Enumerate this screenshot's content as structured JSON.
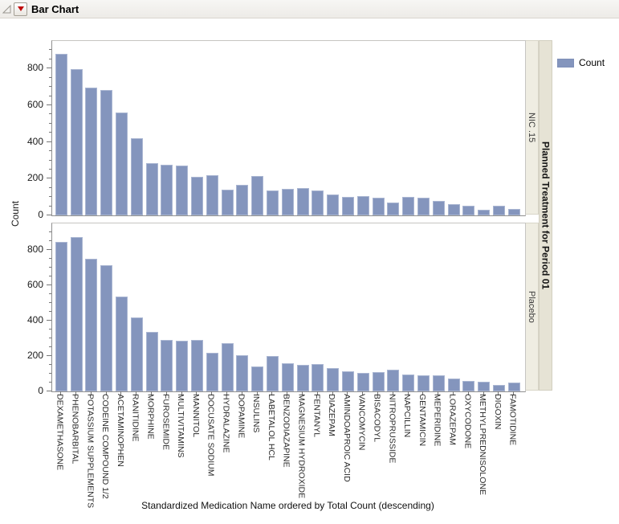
{
  "window": {
    "title": "Bar Chart"
  },
  "legend": {
    "label": "Count"
  },
  "colors": {
    "bar_fill": "#8495bd",
    "bar_border": "#aab6d2",
    "strip_inner_bg": "#efede2",
    "strip_outer_bg": "#e6e3d5"
  },
  "chart_data": {
    "type": "bar",
    "title": "Bar Chart",
    "xlabel": "Standardized Medication Name ordered by Total Count (descending)",
    "ylabel": "Count",
    "panel_variable": "Planned Treatment for Period 01",
    "legend_label": "Count",
    "ylim": [
      0,
      950
    ],
    "yticks_major": [
      0,
      200,
      400,
      600,
      800
    ],
    "ytick_minor_step": 50,
    "grid": false,
    "legend_position": "top-right",
    "categories": [
      "DEXAMETHASONE",
      "PHENOBARBITAL",
      "POTASSIUM SUPPLEMENTS",
      "CODEINE COMPOUND 1/2",
      "ACETAMINOPHEN",
      "RANITIDINE",
      "MORPHINE",
      "FUROSEMIDE",
      "MULTIVITAMINS",
      "MANNITOL",
      "DOCUSATE SODIUM",
      "HYDRALAZINE",
      "DOPAMINE",
      "INSULINS",
      "LABETALOL HCL",
      "BENZODIAZAPINE",
      "MAGNESIUM HYDROXIDE",
      "FENTANYL",
      "DIAZEPAM",
      "AMINDOAPROIC ACID",
      "VANCOMYCIN",
      "BISACODYL",
      "NITROPRUSSIDE",
      "NAPCILLIN",
      "GENTAMICIN",
      "MEPERIDINE",
      "LORAZEPAM",
      "OXYCODONE",
      "METHYLPREDNISOLONE",
      "DIGOXIN",
      "FAMOTIDINE"
    ],
    "series": [
      {
        "name": "NIC .15",
        "values": [
          880,
          795,
          697,
          684,
          560,
          420,
          285,
          277,
          272,
          210,
          218,
          140,
          165,
          215,
          135,
          145,
          150,
          135,
          112,
          100,
          105,
          97,
          71,
          103,
          96,
          81,
          61,
          53,
          33,
          52,
          37
        ]
      },
      {
        "name": "Placebo",
        "values": [
          845,
          875,
          750,
          715,
          535,
          420,
          335,
          290,
          285,
          290,
          220,
          275,
          205,
          140,
          198,
          160,
          150,
          155,
          130,
          115,
          105,
          110,
          125,
          96,
          89,
          93,
          74,
          60,
          54,
          38,
          48
        ]
      }
    ]
  }
}
